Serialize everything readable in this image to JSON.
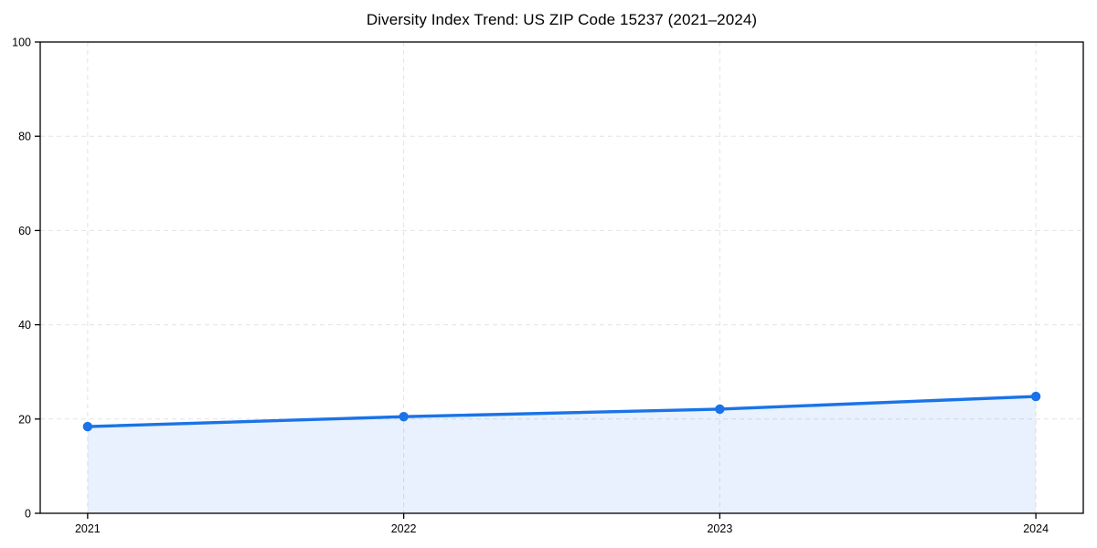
{
  "title": "Diversity Index Trend: US ZIP Code 15237 (2021–2024)",
  "chart_data": {
    "type": "area",
    "title": "Diversity Index Trend: US ZIP Code 15237 (2021–2024)",
    "x": [
      2021,
      2022,
      2023,
      2024
    ],
    "x_labels": [
      "2021",
      "2022",
      "2023",
      "2024"
    ],
    "series": [
      {
        "name": "Diversity Index",
        "values": [
          18.4,
          20.5,
          22.1,
          24.8
        ]
      }
    ],
    "xlabel": "",
    "ylabel": "",
    "xlim": [
      2020.85,
      2024.15
    ],
    "ylim": [
      0,
      100
    ],
    "yticks": [
      0,
      20,
      40,
      60,
      80,
      100
    ],
    "grid": "dashed gridlines at each x tick and y tick",
    "legend": "none",
    "marker": "circle",
    "colors": {
      "line": "#1a73e8",
      "marker": "#1a73e8",
      "area_fill": "rgba(26,115,232,0.10)",
      "grid": "#e3e3e3",
      "spine": "#000000",
      "tick_label": "#000000",
      "background": "#ffffff"
    }
  }
}
